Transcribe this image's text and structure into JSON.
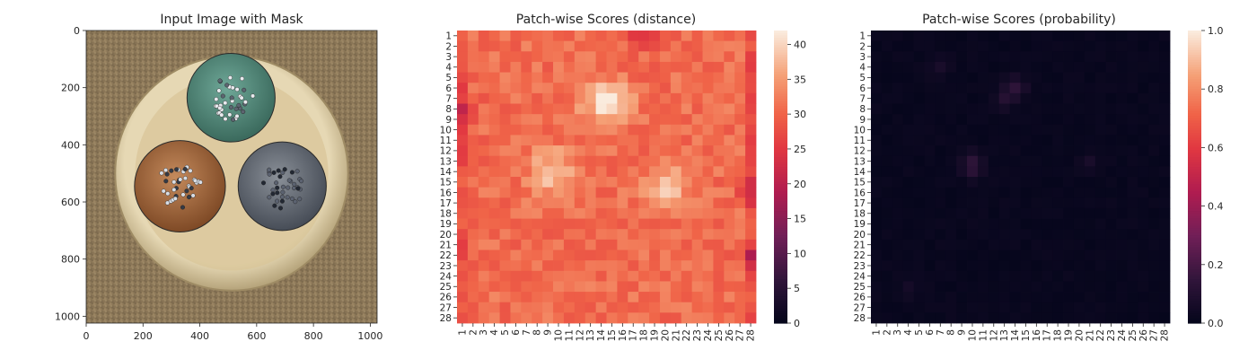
{
  "chart_data": [
    {
      "type": "image",
      "title": "Input Image with Mask",
      "x_ticks": [
        "0",
        "200",
        "400",
        "600",
        "800",
        "1000"
      ],
      "y_ticks": [
        "0",
        "200",
        "400",
        "600",
        "800",
        "1000"
      ],
      "x_range": [
        0,
        1024
      ],
      "y_range": [
        0,
        1024
      ],
      "content": "cable cross-section"
    },
    {
      "type": "heatmap",
      "title": "Patch-wise Scores (distance)",
      "rows": 28,
      "cols": 28,
      "x_ticks": [
        "1",
        "2",
        "3",
        "4",
        "5",
        "6",
        "7",
        "8",
        "9",
        "10",
        "11",
        "12",
        "13",
        "14",
        "15",
        "16",
        "17",
        "18",
        "19",
        "20",
        "21",
        "22",
        "23",
        "24",
        "25",
        "26",
        "27",
        "28"
      ],
      "y_ticks": [
        "1",
        "2",
        "3",
        "4",
        "5",
        "6",
        "7",
        "8",
        "9",
        "10",
        "11",
        "12",
        "13",
        "14",
        "15",
        "16",
        "17",
        "18",
        "19",
        "20",
        "21",
        "22",
        "23",
        "24",
        "25",
        "26",
        "27",
        "28"
      ],
      "colorbar": {
        "min": 0,
        "max": 42,
        "ticks": [
          "0",
          "5",
          "10",
          "15",
          "20",
          "25",
          "30",
          "35",
          "40"
        ]
      },
      "colormap": "rocket",
      "base_value": 31,
      "hotspots": [
        {
          "row": 7.5,
          "col": 14.5,
          "peak": 42
        },
        {
          "row": 14,
          "col": 9.5,
          "peak": 39
        },
        {
          "row": 15.5,
          "col": 20,
          "peak": 38
        }
      ],
      "cold_spots": [
        {
          "row": 1,
          "col": 18,
          "value": 24
        },
        {
          "row": 8,
          "col": 1,
          "value": 25
        },
        {
          "row": 22,
          "col": 28,
          "value": 24
        },
        {
          "row": 16,
          "col": 28,
          "value": 26
        }
      ]
    },
    {
      "type": "heatmap",
      "title": "Patch-wise Scores (probability)",
      "rows": 28,
      "cols": 28,
      "x_ticks": [
        "1",
        "2",
        "3",
        "4",
        "5",
        "6",
        "7",
        "8",
        "9",
        "10",
        "11",
        "12",
        "13",
        "14",
        "15",
        "16",
        "17",
        "18",
        "19",
        "20",
        "21",
        "22",
        "23",
        "24",
        "25",
        "26",
        "27",
        "28"
      ],
      "y_ticks": [
        "1",
        "2",
        "3",
        "4",
        "5",
        "6",
        "7",
        "8",
        "9",
        "10",
        "11",
        "12",
        "13",
        "14",
        "15",
        "16",
        "17",
        "18",
        "19",
        "20",
        "21",
        "22",
        "23",
        "24",
        "25",
        "26",
        "27",
        "28"
      ],
      "colorbar": {
        "min": 0,
        "max": 1,
        "ticks": [
          "0.0",
          "0.2",
          "0.4",
          "0.6",
          "0.8",
          "1.0"
        ]
      },
      "colormap": "rocket",
      "base_value": 0.01,
      "hotspots": [
        {
          "row": 6,
          "col": 14,
          "peak": 0.12
        },
        {
          "row": 7,
          "col": 13,
          "peak": 0.08
        },
        {
          "row": 13,
          "col": 10,
          "peak": 0.09
        },
        {
          "row": 14,
          "col": 10,
          "peak": 0.07
        },
        {
          "row": 4,
          "col": 7,
          "peak": 0.05
        },
        {
          "row": 13,
          "col": 21,
          "peak": 0.05
        },
        {
          "row": 25,
          "col": 4,
          "peak": 0.04
        }
      ]
    }
  ]
}
